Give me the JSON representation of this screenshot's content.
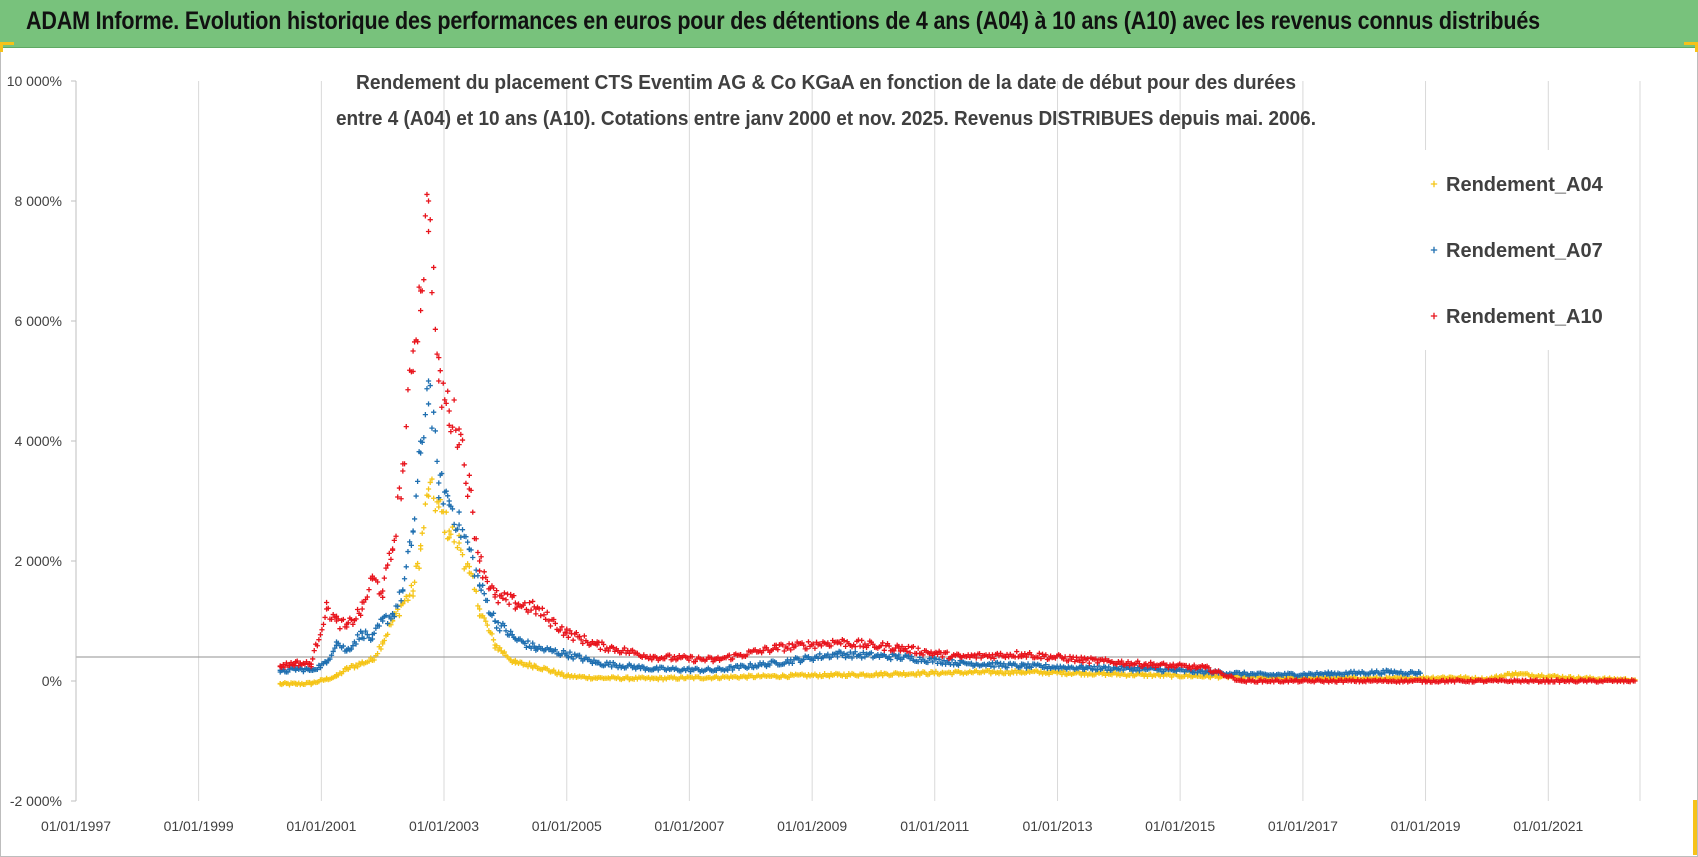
{
  "header": {
    "title": "ADAM Informe. Evolution historique des performances en euros pour des détentions de 4 ans (A04) à 10 ans (A10) avec les revenus connus distribués"
  },
  "colors": {
    "header_bg": "#78c27c",
    "accent_corner": "#f6c21a",
    "A04": "#f5c518",
    "A07": "#1f6fb0",
    "A10": "#e8141c"
  },
  "chart_data": {
    "type": "scatter",
    "title_lines": [
      "Rendement du placement CTS Eventim AG & Co KGaA en fonction de la date de début pour des durées",
      "entre 4 (A04) et 10 ans (A10). Cotations entre janv 2000 et nov. 2025. Revenus DISTRIBUES depuis mai. 2006."
    ],
    "xlabel": "",
    "ylabel": "",
    "x_range": [
      "1997-01-01",
      "2022-07-01"
    ],
    "x_ticks": [
      "01/01/1997",
      "01/01/1999",
      "01/01/2001",
      "01/01/2003",
      "01/01/2005",
      "01/01/2007",
      "01/01/2009",
      "01/01/2011",
      "01/01/2013",
      "01/01/2015",
      "01/01/2017",
      "01/01/2019",
      "01/01/2021"
    ],
    "y_range": [
      -2000,
      10000
    ],
    "y_ticks": [
      -2000,
      0,
      2000,
      4000,
      6000,
      8000,
      10000
    ],
    "y_tick_labels": [
      "-2 000%",
      "0%",
      "2 000%",
      "4 000%",
      "6 000%",
      "8 000%",
      "10 000%"
    ],
    "reference_line": 400,
    "grid": "vertical",
    "legend_position": "right",
    "marker": "plus",
    "series": [
      {
        "name": "Rendement_A04",
        "color": "#f5c518",
        "x": [
          "2000-05-01",
          "2000-08-01",
          "2000-11-01",
          "2001-02-01",
          "2001-04-01",
          "2001-06-01",
          "2001-09-01",
          "2001-11-01",
          "2002-01-01",
          "2002-03-01",
          "2002-05-01",
          "2002-07-01",
          "2002-08-15",
          "2002-10-01",
          "2002-12-01",
          "2003-02-01",
          "2003-04-01",
          "2003-06-01",
          "2003-08-01",
          "2003-11-01",
          "2004-03-01",
          "2004-07-01",
          "2005-01-01",
          "2005-07-01",
          "2006-06-01",
          "2007-06-01",
          "2008-06-01",
          "2009-06-01",
          "2010-06-01",
          "2011-06-01",
          "2012-06-01",
          "2013-06-01",
          "2014-06-01",
          "2015-06-01",
          "2016-06-01",
          "2017-06-01",
          "2018-06-01",
          "2019-06-01",
          "2020-01-01",
          "2020-06-01",
          "2021-01-01",
          "2021-06-01",
          "2022-01-01",
          "2022-06-01"
        ],
        "y": [
          -50,
          -50,
          -40,
          30,
          80,
          200,
          300,
          350,
          650,
          1000,
          1300,
          1500,
          2200,
          3200,
          2900,
          2500,
          2300,
          1800,
          1200,
          600,
          300,
          250,
          80,
          50,
          40,
          60,
          80,
          100,
          120,
          140,
          150,
          130,
          100,
          80,
          60,
          50,
          40,
          60,
          30,
          120,
          80,
          50,
          30,
          20
        ]
      },
      {
        "name": "Rendement_A07",
        "color": "#1f6fb0",
        "x": [
          "2000-05-01",
          "2000-08-01",
          "2000-11-01",
          "2001-02-01",
          "2001-04-01",
          "2001-06-01",
          "2001-09-01",
          "2001-11-01",
          "2002-01-01",
          "2002-03-01",
          "2002-05-01",
          "2002-07-01",
          "2002-08-15",
          "2002-10-01",
          "2002-12-01",
          "2003-02-01",
          "2003-04-01",
          "2003-06-01",
          "2003-08-01",
          "2003-11-01",
          "2004-03-01",
          "2004-07-01",
          "2005-01-01",
          "2005-07-01",
          "2006-06-01",
          "2007-06-01",
          "2008-06-01",
          "2009-06-01",
          "2010-06-01",
          "2011-06-01",
          "2012-06-01",
          "2013-06-01",
          "2014-06-01",
          "2015-06-01",
          "2016-06-01",
          "2017-06-01",
          "2018-06-01",
          "2018-12-01"
        ],
        "y": [
          150,
          200,
          180,
          300,
          650,
          500,
          800,
          700,
          1000,
          1100,
          1500,
          2500,
          3800,
          5000,
          3300,
          3000,
          2600,
          2200,
          1600,
          1000,
          700,
          550,
          450,
          300,
          200,
          180,
          300,
          450,
          400,
          300,
          250,
          220,
          200,
          150,
          100,
          120,
          150,
          130
        ]
      },
      {
        "name": "Rendement_A10",
        "color": "#e8141c",
        "x": [
          "2000-05-01",
          "2000-08-01",
          "2000-11-01",
          "2001-02-01",
          "2001-04-01",
          "2001-06-01",
          "2001-09-01",
          "2001-11-01",
          "2002-01-01",
          "2002-03-01",
          "2002-05-01",
          "2002-07-01",
          "2002-08-15",
          "2002-10-01",
          "2002-12-01",
          "2003-02-01",
          "2003-04-01",
          "2003-06-01",
          "2003-08-01",
          "2003-11-01",
          "2004-03-01",
          "2004-07-01",
          "2005-01-01",
          "2005-07-01",
          "2006-06-01",
          "2007-06-01",
          "2008-06-01",
          "2009-06-01",
          "2010-06-01",
          "2011-06-01",
          "2012-06-01",
          "2013-06-01",
          "2014-06-01",
          "2015-06-01",
          "2016-01-01",
          "2017-01-01",
          "2018-01-01",
          "2019-01-01",
          "2020-01-01",
          "2021-01-01",
          "2022-06-01"
        ],
        "y": [
          250,
          300,
          280,
          1200,
          1000,
          900,
          1200,
          1700,
          1500,
          2200,
          3500,
          5500,
          6500,
          8000,
          5000,
          4500,
          4200,
          3200,
          2000,
          1400,
          1300,
          1200,
          800,
          600,
          400,
          350,
          550,
          650,
          550,
          400,
          450,
          350,
          280,
          220,
          0,
          0,
          0,
          0,
          0,
          0,
          0
        ]
      }
    ]
  }
}
